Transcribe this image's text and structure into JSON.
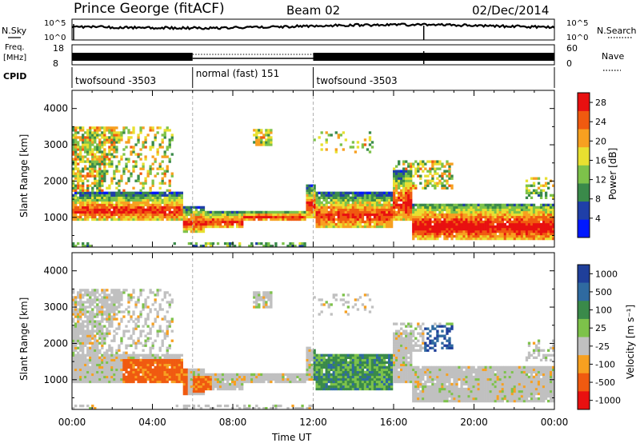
{
  "header": {
    "station": "Prince George (fitACF)",
    "beam": "Beam 02",
    "date": "02/Dec/2014"
  },
  "strips": {
    "nsky_label": "N.Sky",
    "nsky_ticks": [
      "10^5",
      "10^0"
    ],
    "nsearch_label": "N.Search",
    "freq_label_1": "Freq.",
    "freq_label_2": "[MHz]",
    "freq_ticks": [
      "18",
      "8"
    ],
    "nave_label": "Nave",
    "nave_ticks": [
      "60",
      "0"
    ],
    "cpid_label": "CPID",
    "cpid_segments": [
      {
        "label": "twofsound -3503",
        "start_h": 0,
        "end_h": 6
      },
      {
        "label": "normal (fast) 151",
        "start_h": 6,
        "end_h": 12
      },
      {
        "label": "twofsound -3503",
        "start_h": 12,
        "end_h": 24
      }
    ]
  },
  "colors": {
    "power": [
      "#0018ff",
      "#1f3fa8",
      "#3a8a4a",
      "#7dc24a",
      "#e8e030",
      "#f7a020",
      "#f05a10",
      "#e81010"
    ],
    "velocity": [
      "#1f3f9a",
      "#2f6aa0",
      "#3a8a4a",
      "#7dc24a",
      "#c0c0c0",
      "#f7a020",
      "#f05a10",
      "#e81010"
    ]
  },
  "chart_data": [
    {
      "type": "heatmap",
      "name": "power",
      "ylabel": "Slant Range [km]",
      "xlabel": "",
      "x_range": [
        0,
        24
      ],
      "ylim": [
        180,
        4500
      ],
      "y_ticks": [
        "1000",
        "2000",
        "3000",
        "4000"
      ],
      "colorbar_label": "Power [dB]",
      "colorbar_ticks": [
        "28",
        "24",
        "20",
        "16",
        "12",
        "8",
        "4"
      ],
      "colorbar_range": [
        0,
        30
      ]
    },
    {
      "type": "heatmap",
      "name": "velocity",
      "ylabel": "Slant Range [km]",
      "xlabel": "Time UT",
      "x_range": [
        0,
        24
      ],
      "x_ticks": [
        "00:00",
        "04:00",
        "08:00",
        "12:00",
        "16:00",
        "20:00",
        "00:00"
      ],
      "ylim": [
        180,
        4500
      ],
      "y_ticks": [
        "1000",
        "2000",
        "3000",
        "4000"
      ],
      "colorbar_label": "Velocity [m s⁻¹]",
      "colorbar_ticks": [
        "1000",
        "500",
        "100",
        "25",
        "-25",
        "-100",
        "-500",
        "-1000"
      ]
    }
  ]
}
